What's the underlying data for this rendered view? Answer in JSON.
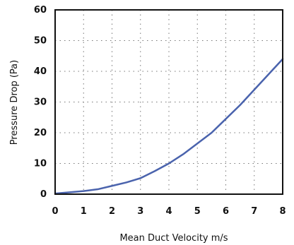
{
  "chart_data": {
    "type": "line",
    "title": "",
    "xlabel": "Mean Duct Velocity m/s",
    "ylabel": "Pressure Drop (Pa)",
    "xlim": [
      0,
      8
    ],
    "ylim": [
      0,
      60
    ],
    "x_ticks": [
      0,
      1,
      2,
      3,
      4,
      5,
      6,
      7,
      8
    ],
    "y_ticks": [
      0,
      10,
      20,
      30,
      40,
      50,
      60
    ],
    "grid": true,
    "legend": "none",
    "series": [
      {
        "color": "#4a63ad",
        "x": [
          0,
          0.5,
          1,
          1.5,
          2,
          2.5,
          3,
          3.5,
          4,
          4.5,
          5,
          5.5,
          6,
          6.5,
          7,
          7.5,
          8
        ],
        "y": [
          0.2,
          0.6,
          1.0,
          1.6,
          2.7,
          3.8,
          5.2,
          7.5,
          10.0,
          13.0,
          16.5,
          20.0,
          24.5,
          29.0,
          34.0,
          39.0,
          44.0
        ]
      }
    ]
  }
}
